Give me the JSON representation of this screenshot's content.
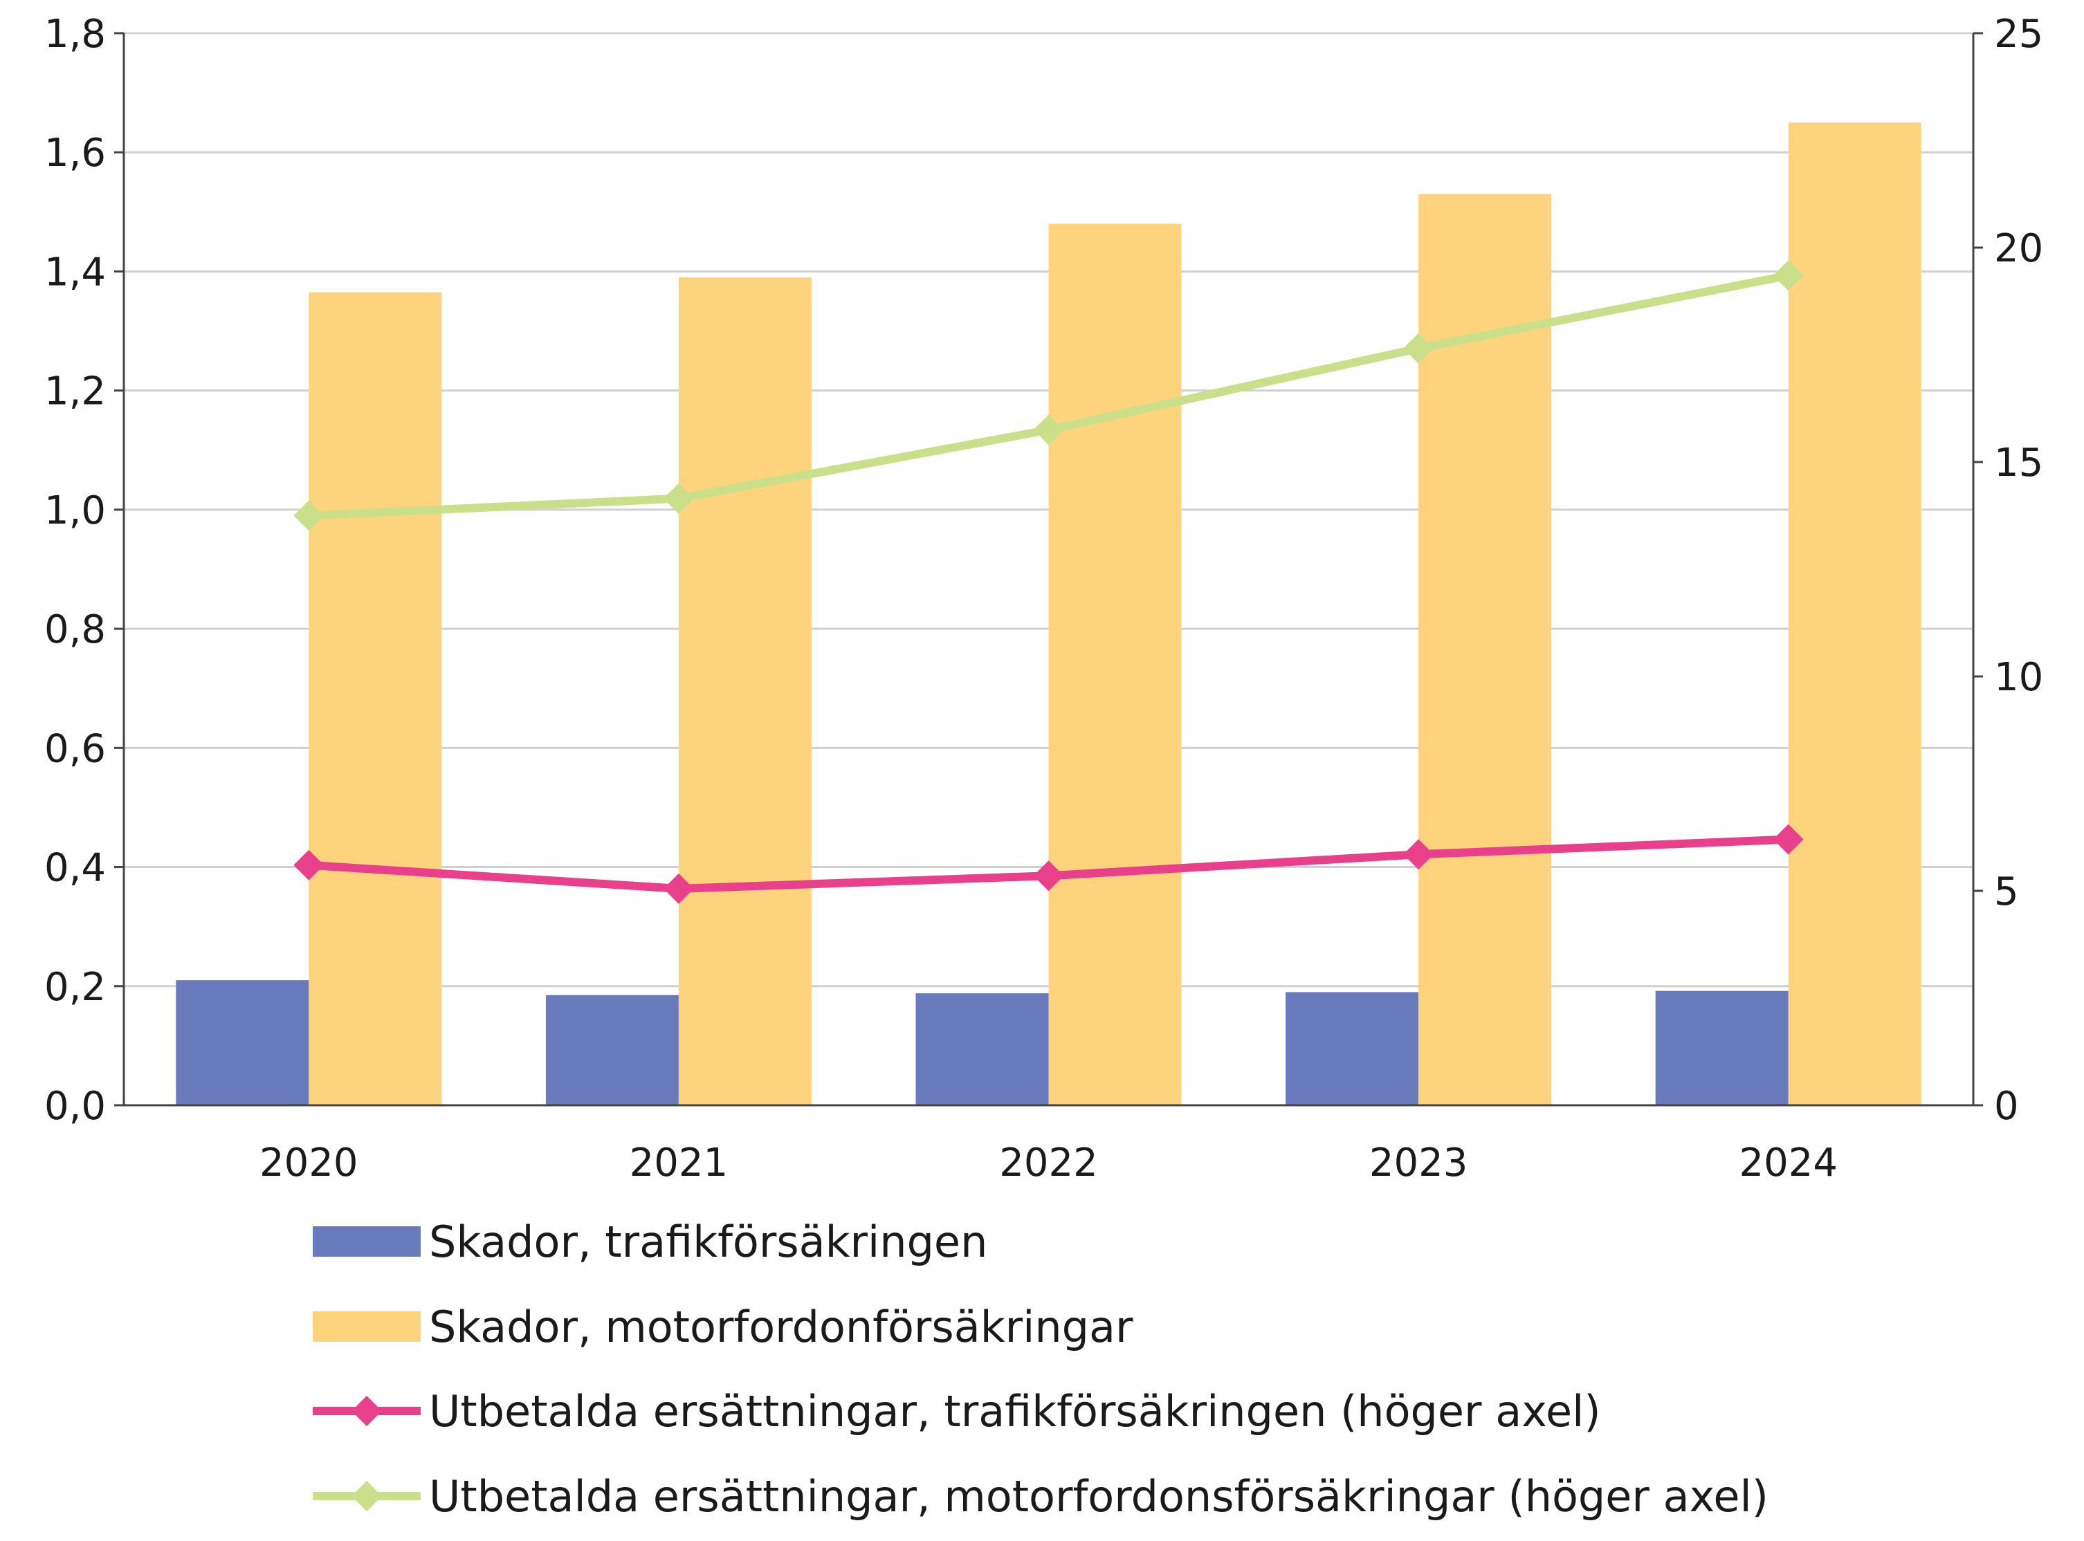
{
  "chart_data": {
    "type": "bar",
    "categories": [
      "2020",
      "2021",
      "2022",
      "2023",
      "2024"
    ],
    "left_axis": {
      "ylim": [
        0,
        1.8
      ],
      "ticks": [
        "0,0",
        "0,2",
        "0,4",
        "0,6",
        "0,8",
        "1,0",
        "1,2",
        "1,4",
        "1,6",
        "1,8"
      ]
    },
    "right_axis": {
      "ylim": [
        0,
        25
      ],
      "ticks": [
        "0",
        "5",
        "10",
        "15",
        "20",
        "25"
      ]
    },
    "grid": true,
    "legend_position": "bottom",
    "series": [
      {
        "name": "Skador, trafikförsäkringen",
        "kind": "bar",
        "axis": "left",
        "color": "#6a7bbd",
        "values": [
          0.21,
          0.185,
          0.188,
          0.19,
          0.192
        ]
      },
      {
        "name": "Skador, motorfordonförsäkringar",
        "kind": "bar",
        "axis": "left",
        "color": "#fdd47d",
        "values": [
          1.365,
          1.39,
          1.48,
          1.53,
          1.65
        ]
      },
      {
        "name": "Utbetalda ersättningar, trafikförsäkringen (höger axel)",
        "kind": "line",
        "axis": "right",
        "color": "#e8408a",
        "values": [
          5.6,
          5.05,
          5.35,
          5.85,
          6.2
        ]
      },
      {
        "name": "Utbetalda ersättningar, motorfordonsförsäkringar (höger axel)",
        "kind": "line",
        "axis": "right",
        "color": "#c9df8a",
        "values": [
          13.75,
          14.15,
          15.75,
          17.65,
          19.35
        ]
      }
    ]
  }
}
